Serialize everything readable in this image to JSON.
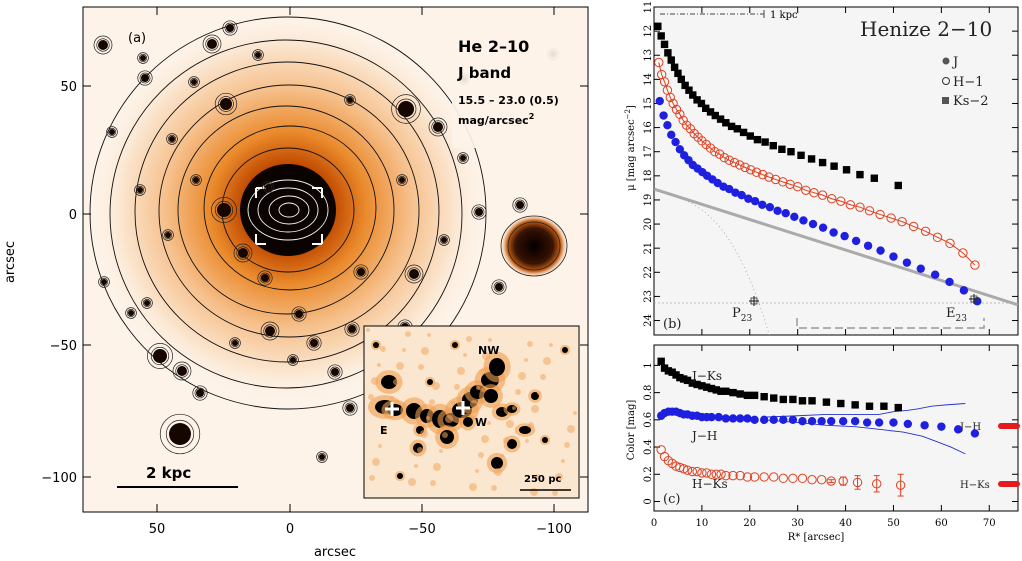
{
  "chart_data": [
    {
      "type": "image",
      "panel": "(a)",
      "title": "He 2–10",
      "band": "J band",
      "range_line": "15.5 – 23.0 (0.5)",
      "unit_line": "mag/arcsec",
      "unit_sup": "2",
      "xlabel": "arcsec",
      "ylabel": "arcsec",
      "xticks": [
        "50",
        "0",
        "−50",
        "−100"
      ],
      "yticks": [
        "50",
        "0",
        "−50",
        "−100"
      ],
      "scalebar": "2 kpc",
      "inset": {
        "labels": [
          "NW",
          "E",
          "W"
        ],
        "scalebar": "250 pc"
      }
    },
    {
      "type": "scatter",
      "panel": "(b)",
      "title": "Henize 2−10",
      "top_label": "1 kpc",
      "ylabel": "μ [mag arcsec",
      "ylabel_sup": "−2",
      "ylabel_end": "]",
      "xlim": [
        0,
        76
      ],
      "ylim": [
        24.6,
        11
      ],
      "yticks": [
        "11",
        "12",
        "13",
        "14",
        "15",
        "16",
        "17",
        "18",
        "19",
        "20",
        "21",
        "22",
        "23",
        "24"
      ],
      "legend": [
        "J",
        "H−1",
        "Ks−2"
      ],
      "annotations": [
        "P",
        "23",
        "E",
        "23"
      ],
      "series": [
        {
          "name": "J",
          "color": "#1f1fe0",
          "x": [
            1.2,
            2.0,
            2.8,
            3.6,
            4.5,
            5.4,
            6.3,
            7.2,
            8.1,
            9.1,
            10.1,
            11.1,
            12.2,
            13.3,
            14.5,
            15.7,
            17.0,
            18.3,
            19.7,
            21.1,
            22.6,
            24.2,
            25.8,
            27.5,
            29.3,
            31.2,
            33.2,
            35.3,
            37.5,
            39.8,
            42.2,
            44.7,
            47.3,
            50.0,
            52.8,
            55.7,
            58.7,
            61.7,
            64.7,
            67.5
          ],
          "y": [
            14.9,
            15.5,
            15.9,
            16.3,
            16.6,
            16.9,
            17.15,
            17.35,
            17.55,
            17.7,
            17.85,
            18.0,
            18.15,
            18.3,
            18.45,
            18.55,
            18.7,
            18.8,
            18.95,
            19.05,
            19.2,
            19.3,
            19.45,
            19.55,
            19.7,
            19.85,
            20.0,
            20.15,
            20.35,
            20.5,
            20.7,
            20.9,
            21.1,
            21.35,
            21.6,
            21.85,
            22.1,
            22.4,
            22.75,
            23.2
          ]
        },
        {
          "name": "H−1",
          "color": "#e04020",
          "x": [
            1.0,
            1.6,
            2.2,
            2.8,
            3.4,
            4.0,
            4.7,
            5.4,
            6.1,
            6.8,
            7.6,
            8.4,
            9.2,
            10.0,
            10.9,
            11.8,
            12.7,
            13.7,
            14.7,
            15.7,
            16.8,
            17.9,
            19.0,
            20.2,
            21.4,
            22.7,
            24.0,
            25.4,
            26.9,
            28.4,
            30.0,
            31.7,
            33.4,
            35.2,
            37.1,
            39.0,
            41.0,
            43.0,
            45.0,
            47.2,
            49.5,
            51.8,
            54.2,
            56.7,
            59.2,
            61.8,
            64.5,
            67.0
          ],
          "y": [
            13.3,
            13.8,
            14.1,
            14.45,
            14.75,
            15.0,
            15.25,
            15.45,
            15.7,
            15.9,
            16.05,
            16.25,
            16.4,
            16.55,
            16.7,
            16.85,
            17.0,
            17.1,
            17.25,
            17.35,
            17.45,
            17.55,
            17.65,
            17.75,
            17.85,
            17.95,
            18.05,
            18.15,
            18.25,
            18.35,
            18.45,
            18.6,
            18.7,
            18.8,
            18.95,
            19.05,
            19.2,
            19.3,
            19.45,
            19.6,
            19.75,
            19.9,
            20.1,
            20.3,
            20.55,
            20.8,
            21.2,
            21.7
          ]
        },
        {
          "name": "Ks−2",
          "color": "#000000",
          "x": [
            0.8,
            1.5,
            2.2,
            2.9,
            3.6,
            4.3,
            5.0,
            5.7,
            6.5,
            7.3,
            8.1,
            9.0,
            9.9,
            10.8,
            11.8,
            12.8,
            13.9,
            15.0,
            16.2,
            17.4,
            18.7,
            20.1,
            21.6,
            23.2,
            24.9,
            26.7,
            28.6,
            30.7,
            32.9,
            35.2,
            37.6,
            40.2,
            43.0,
            46.0,
            51.0
          ],
          "y": [
            11.8,
            12.2,
            12.55,
            12.9,
            13.2,
            13.5,
            13.75,
            14.0,
            14.25,
            14.45,
            14.65,
            14.85,
            15.0,
            15.2,
            15.35,
            15.5,
            15.65,
            15.8,
            15.95,
            16.05,
            16.2,
            16.35,
            16.5,
            16.6,
            16.75,
            16.9,
            17.0,
            17.15,
            17.3,
            17.45,
            17.6,
            17.75,
            17.95,
            18.1,
            18.4
          ]
        }
      ]
    },
    {
      "type": "scatter",
      "panel": "(c)",
      "xlabel": "R* [arcsec]",
      "ylabel": "Color [mag]",
      "xlim": [
        0,
        76
      ],
      "ylim": [
        -0.07,
        1.15
      ],
      "xticks": [
        "0",
        "10",
        "20",
        "30",
        "40",
        "50",
        "60",
        "70"
      ],
      "yticks": [
        "0",
        "0.2",
        "0.4",
        "0.6",
        "0.8",
        "1"
      ],
      "series_labels": [
        "J−Ks",
        "J−H",
        "H−Ks"
      ],
      "side_labels": [
        "J−H",
        "H−Ks"
      ],
      "series": [
        {
          "name": "J−Ks",
          "color": "#000000",
          "x": [
            1.5,
            2.2,
            3.0,
            3.8,
            4.6,
            5.4,
            6.2,
            7.0,
            8.0,
            9.0,
            10.0,
            11.0,
            12.0,
            13.0,
            14.0,
            15.0,
            16.5,
            18.0,
            19.5,
            21.0,
            23.0,
            25.0,
            27.0,
            29.0,
            31.0,
            33.0,
            36.0,
            39.0,
            42.0,
            45.0,
            48.0,
            51.0
          ],
          "y": [
            1.03,
            0.98,
            0.96,
            0.95,
            0.93,
            0.91,
            0.9,
            0.89,
            0.87,
            0.86,
            0.85,
            0.84,
            0.83,
            0.82,
            0.81,
            0.81,
            0.8,
            0.79,
            0.78,
            0.78,
            0.77,
            0.76,
            0.75,
            0.75,
            0.74,
            0.74,
            0.73,
            0.72,
            0.71,
            0.7,
            0.7,
            0.69
          ]
        },
        {
          "name": "J−H",
          "color": "#1f1fe0",
          "x": [
            1.5,
            2.2,
            3.0,
            3.8,
            4.6,
            5.4,
            6.2,
            7.0,
            8.0,
            9.0,
            10.0,
            11.0,
            12.0,
            13.5,
            15.0,
            16.5,
            18.0,
            19.5,
            21.0,
            23.0,
            25.0,
            27.0,
            29.0,
            31.0,
            33.0,
            35.0,
            37.0,
            39.5,
            42.0,
            44.5,
            47.0,
            50.0,
            53.0,
            56.5,
            60.0,
            63.5,
            67.0
          ],
          "y": [
            0.63,
            0.65,
            0.66,
            0.66,
            0.66,
            0.65,
            0.64,
            0.64,
            0.63,
            0.63,
            0.62,
            0.62,
            0.62,
            0.62,
            0.61,
            0.61,
            0.61,
            0.61,
            0.6,
            0.6,
            0.6,
            0.6,
            0.6,
            0.59,
            0.59,
            0.59,
            0.59,
            0.59,
            0.59,
            0.58,
            0.58,
            0.58,
            0.57,
            0.56,
            0.55,
            0.53,
            0.5
          ],
          "band_upper": [
            [
              23,
              0.62
            ],
            [
              30,
              0.63
            ],
            [
              36,
              0.64
            ],
            [
              42,
              0.64
            ],
            [
              47,
              0.64
            ],
            [
              50,
              0.66
            ],
            [
              53,
              0.67
            ],
            [
              55,
              0.68
            ],
            [
              58,
              0.7
            ],
            [
              61,
              0.71
            ],
            [
              65,
              0.72
            ]
          ],
          "band_lower": [
            [
              23,
              0.6
            ],
            [
              30,
              0.58
            ],
            [
              36,
              0.56
            ],
            [
              42,
              0.55
            ],
            [
              47,
              0.53
            ],
            [
              52,
              0.51
            ],
            [
              56,
              0.48
            ],
            [
              59,
              0.44
            ],
            [
              62,
              0.4
            ],
            [
              65,
              0.35
            ]
          ]
        },
        {
          "name": "H−Ks",
          "color": "#e04020",
          "x": [
            1.5,
            2.2,
            3.0,
            3.8,
            4.6,
            5.4,
            6.2,
            7.0,
            8.0,
            9.0,
            10.0,
            11.0,
            12.0,
            13.0,
            14.0,
            15.0,
            16.5,
            18.0,
            19.5,
            21.0,
            23.0,
            25.0,
            27.0,
            29.0,
            31.0,
            33.0,
            35.0,
            37.0,
            39.5,
            42.5,
            46.5,
            51.5
          ],
          "y": [
            0.38,
            0.33,
            0.3,
            0.28,
            0.26,
            0.25,
            0.24,
            0.23,
            0.22,
            0.22,
            0.21,
            0.21,
            0.2,
            0.2,
            0.2,
            0.19,
            0.19,
            0.19,
            0.18,
            0.18,
            0.18,
            0.18,
            0.17,
            0.17,
            0.17,
            0.16,
            0.16,
            0.15,
            0.15,
            0.14,
            0.13,
            0.12
          ],
          "err": [
            0,
            0,
            0,
            0,
            0,
            0,
            0,
            0,
            0,
            0,
            0,
            0,
            0,
            0,
            0,
            0,
            0,
            0,
            0,
            0,
            0,
            0,
            0,
            0,
            0,
            0,
            0,
            0.01,
            0.03,
            0.05,
            0.06,
            0.08
          ]
        }
      ]
    }
  ]
}
